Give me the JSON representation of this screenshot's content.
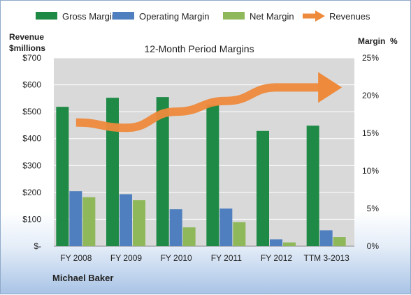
{
  "chart_data": {
    "type": "bar",
    "title": "12-Month Period Margins",
    "categories": [
      "FY 2008",
      "FY 2009",
      "FY 2010",
      "FY 2011",
      "FY 2012",
      "TTM 3-2013"
    ],
    "left_axis": {
      "label_line1": "Revenue",
      "label_line2": "$millions",
      "ticks": [
        "$-",
        "$100",
        "$200",
        "$300",
        "$400",
        "$500",
        "$600",
        "$700"
      ],
      "ylim": [
        0,
        700
      ]
    },
    "right_axis": {
      "label": "Margin  %",
      "ticks": [
        "0%",
        "5%",
        "10%",
        "15%",
        "20%",
        "25%"
      ],
      "ylim": [
        0,
        25
      ]
    },
    "series": [
      {
        "name": "Gross Margin",
        "kind": "bar",
        "axis": "right",
        "color": "#1e8a45",
        "values": [
          18.5,
          19.7,
          19.8,
          18.8,
          15.3,
          16.0
        ]
      },
      {
        "name": "Operating Margin",
        "kind": "bar",
        "axis": "right",
        "color": "#4f7fbf",
        "values": [
          7.3,
          6.9,
          4.9,
          5.0,
          0.9,
          2.1
        ]
      },
      {
        "name": "Net Margin",
        "kind": "bar",
        "axis": "right",
        "color": "#8fb85b",
        "values": [
          6.5,
          6.1,
          2.5,
          3.2,
          0.5,
          1.2
        ]
      },
      {
        "name": "Revenues",
        "kind": "arrow-line",
        "axis": "left",
        "color": "#ee8a3c",
        "values": [
          460,
          440,
          500,
          540,
          590,
          590
        ]
      }
    ],
    "legend_position": "top",
    "grid": "horizontal",
    "footer_text": "Michael Baker"
  }
}
